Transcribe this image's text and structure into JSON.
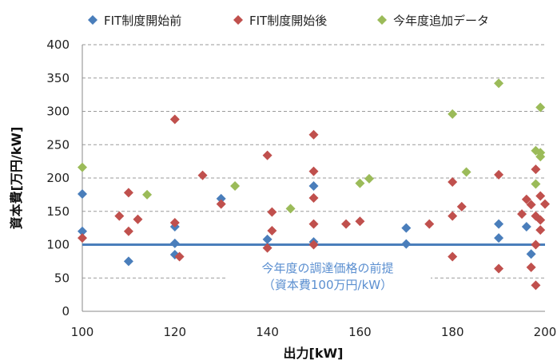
{
  "chart_data": {
    "type": "scatter",
    "xlabel": "出力[kW]",
    "ylabel": "資本費[万円/kW]",
    "xlim": [
      100,
      200
    ],
    "ylim": [
      0,
      400
    ],
    "xticks": [
      100,
      120,
      140,
      160,
      180,
      200
    ],
    "yticks": [
      0,
      50,
      100,
      150,
      200,
      250,
      300,
      350,
      400
    ],
    "grid": "horizontal-dashed",
    "legend_position": "top",
    "series": [
      {
        "name": "FIT制度開始前",
        "marker": "diamond",
        "color": "#4a7ebb",
        "points": [
          [
            100,
            176
          ],
          [
            100,
            120
          ],
          [
            110,
            75
          ],
          [
            120,
            127
          ],
          [
            120,
            102
          ],
          [
            120,
            85
          ],
          [
            130,
            169
          ],
          [
            140,
            108
          ],
          [
            150,
            188
          ],
          [
            150,
            104
          ],
          [
            170,
            125
          ],
          [
            170,
            101
          ],
          [
            190,
            131
          ],
          [
            190,
            110
          ],
          [
            196,
            127
          ],
          [
            197,
            86
          ]
        ]
      },
      {
        "name": "FIT制度開始後",
        "marker": "diamond",
        "color": "#c0504d",
        "points": [
          [
            100,
            110
          ],
          [
            108,
            143
          ],
          [
            110,
            178
          ],
          [
            110,
            120
          ],
          [
            112,
            138
          ],
          [
            120,
            288
          ],
          [
            120,
            133
          ],
          [
            121,
            82
          ],
          [
            126,
            204
          ],
          [
            130,
            161
          ],
          [
            140,
            234
          ],
          [
            140,
            95
          ],
          [
            141,
            149
          ],
          [
            141,
            121
          ],
          [
            150,
            265
          ],
          [
            150,
            210
          ],
          [
            150,
            170
          ],
          [
            150,
            131
          ],
          [
            150,
            100
          ],
          [
            157,
            131
          ],
          [
            160,
            135
          ],
          [
            175,
            131
          ],
          [
            180,
            194
          ],
          [
            180,
            143
          ],
          [
            180,
            82
          ],
          [
            182,
            157
          ],
          [
            190,
            205
          ],
          [
            190,
            64
          ],
          [
            195,
            146
          ],
          [
            196,
            168
          ],
          [
            197,
            160
          ],
          [
            197,
            66
          ],
          [
            198,
            213
          ],
          [
            198,
            143
          ],
          [
            198,
            100
          ],
          [
            198,
            39
          ],
          [
            199,
            173
          ],
          [
            199,
            137
          ],
          [
            199,
            122
          ],
          [
            200,
            161
          ]
        ]
      },
      {
        "name": "今年度追加データ",
        "marker": "diamond",
        "color": "#9bbb59",
        "points": [
          [
            100,
            216
          ],
          [
            114,
            175
          ],
          [
            133,
            188
          ],
          [
            145,
            154
          ],
          [
            160,
            192
          ],
          [
            162,
            199
          ],
          [
            180,
            296
          ],
          [
            183,
            209
          ],
          [
            190,
            342
          ],
          [
            198,
            241
          ],
          [
            198,
            191
          ],
          [
            199,
            306
          ],
          [
            199,
            238
          ],
          [
            199,
            232
          ]
        ]
      }
    ],
    "reference_line": {
      "y": 100,
      "color": "#4a7ebb"
    },
    "annotation": [
      "今年度の調達価格の前提",
      "（資本費100万円/kW）"
    ]
  }
}
